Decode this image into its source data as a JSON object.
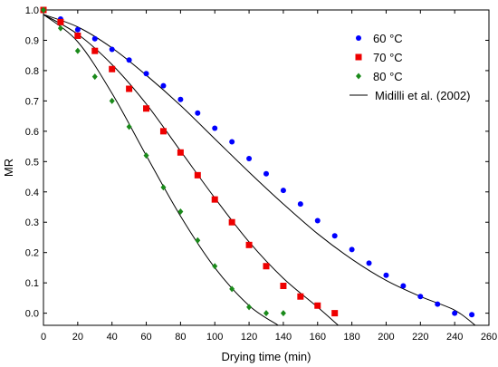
{
  "chart_data": {
    "type": "scatter",
    "xlabel": "Drying time (min)",
    "ylabel": "MR",
    "xlim": [
      0,
      260
    ],
    "ylim": [
      -0.04,
      1.0
    ],
    "xticks": [
      0,
      20,
      40,
      60,
      80,
      100,
      120,
      140,
      160,
      180,
      200,
      220,
      240,
      260
    ],
    "yticks": [
      0.0,
      0.1,
      0.2,
      0.3,
      0.4,
      0.5,
      0.6,
      0.7,
      0.8,
      0.9,
      1.0
    ],
    "ytick_labels": [
      "0.0",
      "0.1",
      "0.2",
      "0.3",
      "0.4",
      "0.5",
      "0.6",
      "0.7",
      "0.8",
      "0.9",
      "1.0"
    ],
    "grid": false,
    "legend_position": "top-right",
    "series": [
      {
        "name": "60 °C",
        "marker": "circle",
        "color": "#0000ff",
        "x": [
          0,
          10,
          20,
          30,
          40,
          50,
          60,
          70,
          80,
          90,
          100,
          110,
          120,
          130,
          140,
          150,
          160,
          170,
          180,
          190,
          200,
          210,
          220,
          230,
          240,
          250
        ],
        "y": [
          1.0,
          0.97,
          0.935,
          0.905,
          0.87,
          0.835,
          0.79,
          0.75,
          0.705,
          0.66,
          0.61,
          0.565,
          0.51,
          0.46,
          0.405,
          0.36,
          0.305,
          0.255,
          0.21,
          0.165,
          0.125,
          0.09,
          0.055,
          0.03,
          0.0,
          -0.005
        ]
      },
      {
        "name": "70 °C",
        "marker": "square",
        "color": "#ee0000",
        "x": [
          0,
          10,
          20,
          30,
          40,
          50,
          60,
          70,
          80,
          90,
          100,
          110,
          120,
          130,
          140,
          150,
          160,
          170
        ],
        "y": [
          1.0,
          0.96,
          0.915,
          0.865,
          0.805,
          0.74,
          0.675,
          0.6,
          0.53,
          0.455,
          0.375,
          0.3,
          0.225,
          0.155,
          0.09,
          0.055,
          0.025,
          0.0
        ]
      },
      {
        "name": "80 °C",
        "marker": "diamond",
        "color": "#1a8a1a",
        "x": [
          0,
          10,
          20,
          30,
          40,
          50,
          60,
          70,
          80,
          90,
          100,
          110,
          120,
          130,
          140
        ],
        "y": [
          1.0,
          0.94,
          0.865,
          0.78,
          0.7,
          0.615,
          0.52,
          0.415,
          0.335,
          0.24,
          0.155,
          0.08,
          0.02,
          0.0,
          0.0
        ]
      },
      {
        "name": "Midilli et al. (2002)",
        "marker": "none",
        "color": "#000000",
        "curves": [
          {
            "x": [
              0,
              20,
              40,
              60,
              80,
              100,
              120,
              140,
              160,
              180,
              200,
              220,
              240,
              252
            ],
            "y": [
              0.985,
              0.944,
              0.875,
              0.785,
              0.685,
              0.575,
              0.465,
              0.36,
              0.262,
              0.178,
              0.108,
              0.055,
              0.01,
              -0.04
            ]
          },
          {
            "x": [
              0,
              20,
              40,
              60,
              80,
              100,
              120,
              140,
              160,
              172
            ],
            "y": [
              0.985,
              0.92,
              0.82,
              0.69,
              0.535,
              0.38,
              0.235,
              0.115,
              0.02,
              -0.04
            ]
          },
          {
            "x": [
              0,
              20,
              40,
              60,
              80,
              100,
              120,
              137
            ],
            "y": [
              0.985,
              0.895,
              0.725,
              0.52,
              0.32,
              0.15,
              0.025,
              -0.04
            ]
          }
        ]
      }
    ]
  }
}
